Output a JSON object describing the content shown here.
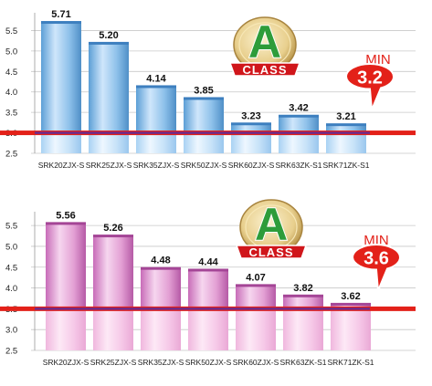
{
  "badge": {
    "letter": "A",
    "word": "CLASS"
  },
  "colors": {
    "threshold_line": "#e32119",
    "threshold_band": "#6a2a8e",
    "blue_bar": "#8ec1ea",
    "pink_bar": "#e7a3d8",
    "grid": "#c8c8c8"
  },
  "chart_data": [
    {
      "type": "bar",
      "categories": [
        "SRK20ZJX-S",
        "SRK25ZJX-S",
        "SRK35ZJX-S",
        "SRK50ZJX-S",
        "SRK60ZJX-S",
        "SRK63ZK-S1",
        "SRK71ZK-S1"
      ],
      "values": [
        5.71,
        5.2,
        4.14,
        3.85,
        3.23,
        3.42,
        3.21
      ],
      "value_labels": [
        "5.71",
        "5.20",
        "4.14",
        "3.85",
        "3.23",
        "3.42",
        "3.21"
      ],
      "y_ticks": [
        "2.5",
        "3.0",
        "3.5",
        "4.0",
        "4.5",
        "5.0",
        "5.5"
      ],
      "ylim": [
        2.5,
        5.8
      ],
      "threshold": 3.0,
      "min_label": "MIN",
      "min_value": "3.2",
      "color": "blue",
      "grid": true
    },
    {
      "type": "bar",
      "categories": [
        "SRK20ZJX-S",
        "SRK25ZJX-S",
        "SRK35ZJX-S",
        "SRK50ZJX-S",
        "SRK60ZJX-S",
        "SRK63ZK-S1",
        "SRK71ZK-S1"
      ],
      "values": [
        5.56,
        5.26,
        4.48,
        4.44,
        4.07,
        3.82,
        3.62
      ],
      "value_labels": [
        "5.56",
        "5.26",
        "4.48",
        "4.44",
        "4.07",
        "3.82",
        "3.62"
      ],
      "y_ticks": [
        "2.5",
        "3.0",
        "3.5",
        "4.0",
        "4.5",
        "5.0",
        "5.5"
      ],
      "ylim": [
        2.5,
        5.7
      ],
      "threshold": 3.5,
      "min_label": "MIN",
      "min_value": "3.6",
      "color": "pink",
      "grid": true
    }
  ]
}
